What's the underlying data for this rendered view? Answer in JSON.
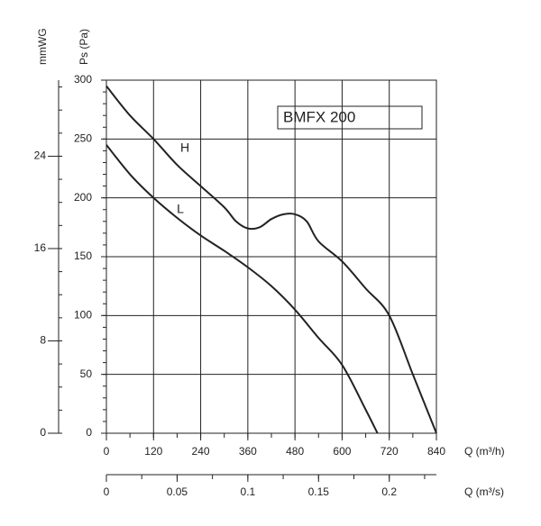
{
  "chart_data": {
    "type": "line",
    "title": "BMFX 200",
    "xlabel": "Q (m³/h)",
    "x2label": "Q (m³/s)",
    "ylabel": "Ps (Pa)",
    "y2label": "mmWG",
    "xlim": [
      0,
      840
    ],
    "xticks": [
      0,
      120,
      240,
      360,
      480,
      600,
      720,
      840
    ],
    "x2lim": [
      0,
      0.23333
    ],
    "x2ticks": [
      0,
      0.05,
      0.1,
      0.15,
      0.2
    ],
    "ylim": [
      0,
      300
    ],
    "yticks": [
      0,
      50,
      100,
      150,
      200,
      250,
      300
    ],
    "y2lim": [
      0,
      30.59
    ],
    "y2ticks": [
      0,
      8,
      16,
      24
    ],
    "grid": true,
    "series": [
      {
        "name": "H",
        "color": "#222222",
        "x": [
          0,
          60,
          120,
          180,
          240,
          300,
          330,
          360,
          390,
          420,
          450,
          480,
          510,
          540,
          600,
          660,
          720,
          780,
          840
        ],
        "values": [
          295,
          270,
          250,
          228,
          210,
          192,
          180,
          174,
          175,
          182,
          186,
          186,
          180,
          163,
          146,
          123,
          100,
          50,
          0
        ]
      },
      {
        "name": "L",
        "color": "#222222",
        "x": [
          0,
          60,
          120,
          180,
          240,
          300,
          360,
          420,
          480,
          540,
          600,
          660,
          690
        ],
        "values": [
          245,
          220,
          200,
          183,
          168,
          155,
          141,
          125,
          105,
          81,
          58,
          20,
          0
        ]
      }
    ]
  }
}
